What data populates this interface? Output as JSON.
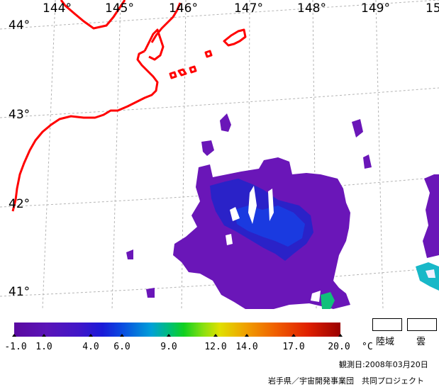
{
  "map": {
    "longitude_labels": [
      "144°",
      "145°",
      "146°",
      "147°",
      "148°",
      "149°",
      "15"
    ],
    "latitude_labels": [
      "44°",
      "43°",
      "42°",
      "41°"
    ],
    "coastline_color": "#ff0000",
    "graticule_color": "#b4b4b4"
  },
  "colorbar": {
    "ticks": [
      "-1.0",
      "1.0",
      "4.0",
      "6.0",
      "9.0",
      "12.0",
      "14.0",
      "17.0",
      "20.0"
    ],
    "unit": "°C",
    "range": [
      -1.0,
      20.0
    ]
  },
  "legend": {
    "land_label": "陸域",
    "cloud_label": "雲"
  },
  "observation_date": "観測日:2008年03月20日",
  "credit": "岩手県／宇宙開発事業団　共同プロジェクト"
}
